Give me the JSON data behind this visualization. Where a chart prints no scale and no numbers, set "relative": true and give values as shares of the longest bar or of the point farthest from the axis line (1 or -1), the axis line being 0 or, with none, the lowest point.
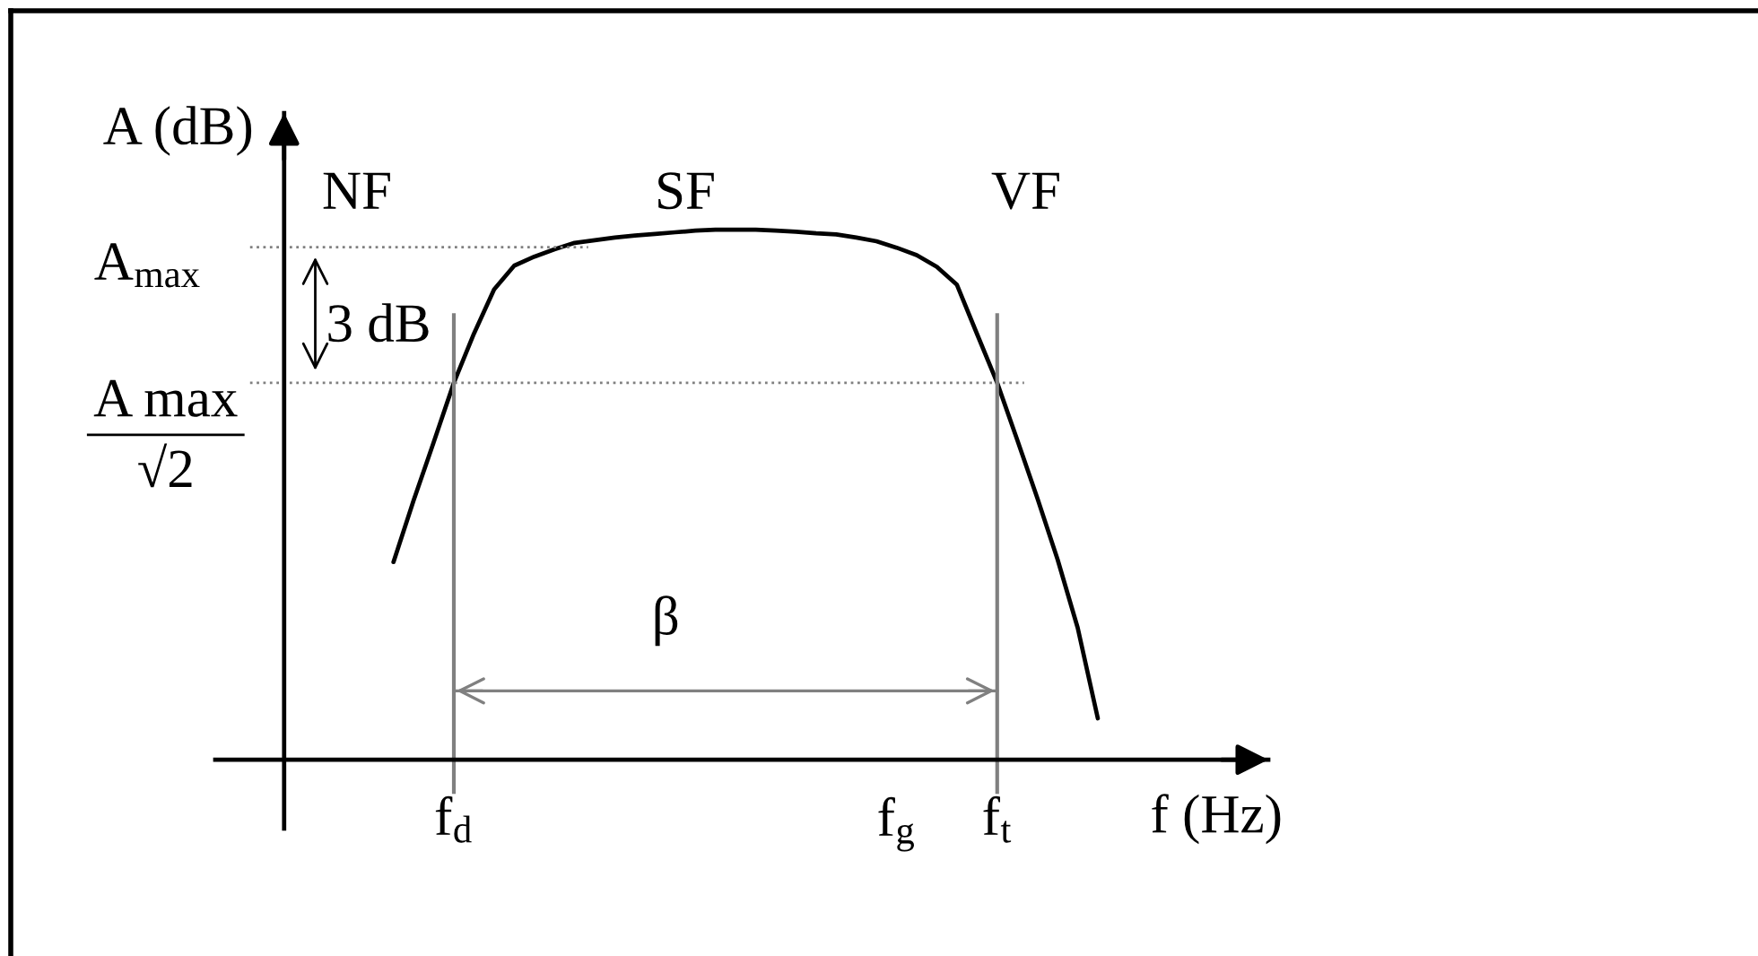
{
  "chart_data": {
    "type": "line",
    "relative": true,
    "xlabel": "f (Hz)",
    "ylabel": "A (dB)",
    "categories": [
      null,
      null,
      null,
      "f$_{d}$",
      null,
      null,
      null,
      null,
      null,
      null,
      null,
      null,
      null,
      null,
      null,
      null,
      null,
      null,
      null,
      null,
      null,
      null,
      null,
      null,
      null,
      "f$_{g}$",
      null,
      null,
      null,
      null,
      "f$_{t}$",
      null,
      null,
      null,
      null,
      null
    ],
    "series": [
      {
        "color": "#000000",
        "values": [
          0.373,
          0.489,
          0.599,
          0.711,
          0.804,
          0.887,
          0.932,
          0.949,
          0.963,
          0.975,
          0.98,
          0.985,
          0.989,
          0.992,
          0.995,
          0.998,
          1.0,
          1.0,
          1.0,
          0.998,
          0.996,
          0.993,
          0.991,
          0.985,
          0.978,
          0.966,
          0.952,
          0.93,
          0.896,
          0.803,
          0.711,
          0.603,
          0.493,
          0.378,
          0.249,
          0.078
        ]
      },
      {
        "name": "β",
        "color": "#808080",
        "values": [
          null,
          null,
          null,
          0.13,
          0.13,
          0.13,
          0.13,
          0.13,
          0.13,
          0.13,
          0.13,
          0.13,
          0.13,
          0.13,
          0.13,
          0.13,
          0.13,
          0.13,
          0.13,
          0.13,
          0.13,
          0.13,
          0.13,
          0.13,
          0.13,
          0.13,
          0.13,
          0.13,
          0.13,
          0.13,
          0.13,
          null,
          null,
          null,
          null,
          null
        ]
      }
    ],
    "ref_lines": [
      {
        "axis": "y",
        "value": 0.967,
        "label": "A$_{max}$",
        "line_style": "dotted",
        "color": "#808080"
      },
      {
        "axis": "y",
        "value": 0.711,
        "label": "A max\n√2",
        "line_style": "dotted",
        "color": "#808080"
      },
      {
        "axis": "x",
        "value": "f$_{d}$",
        "line_style": "solid",
        "color": "#808080"
      },
      {
        "axis": "x",
        "value": "f$_{t}$",
        "line_style": "solid",
        "color": "#808080"
      }
    ],
    "annotations": [
      "NF",
      "SF",
      "VF",
      "3 dB"
    ]
  }
}
